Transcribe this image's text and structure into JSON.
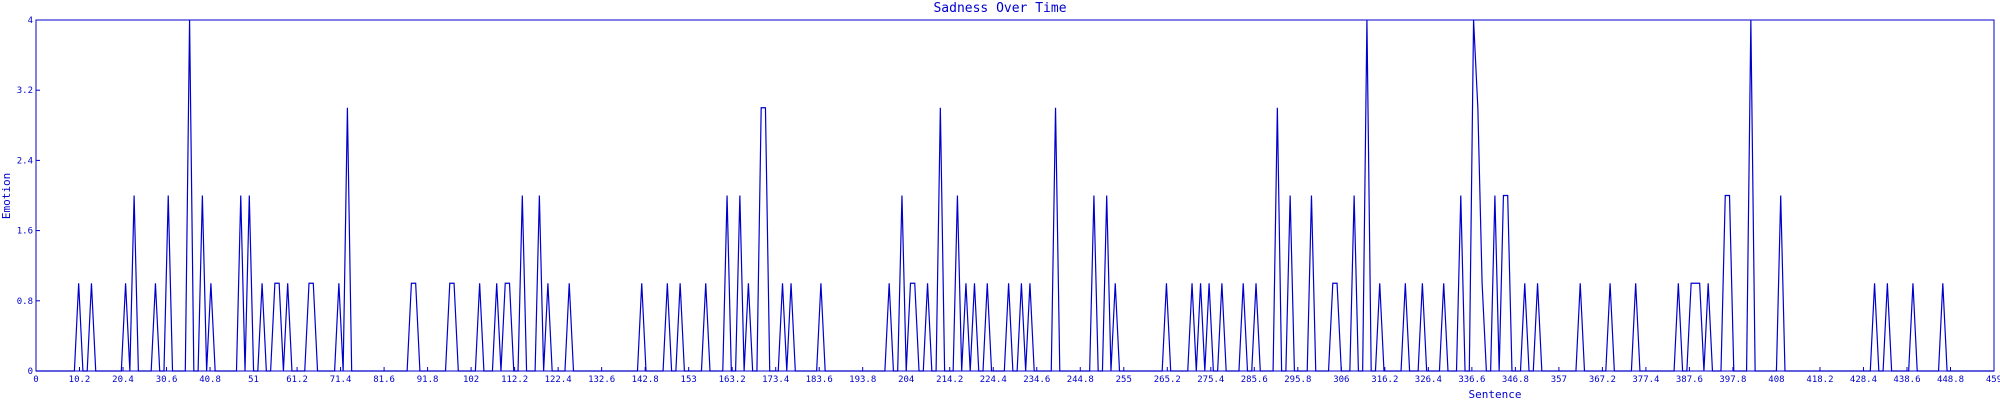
{
  "chart_data": {
    "type": "line",
    "title": "Sadness Over Time",
    "xlabel": "Sentence",
    "ylabel": "Emotion",
    "xlim": [
      0,
      459
    ],
    "ylim": [
      0,
      4
    ],
    "grid": false,
    "color": "#0000cc",
    "x_ticks": [
      "0",
      "10.2",
      "20.4",
      "30.6",
      "40.8",
      "51",
      "61.2",
      "71.4",
      "81.6",
      "91.8",
      "102",
      "112.2",
      "122.4",
      "132.6",
      "142.8",
      "153",
      "163.2",
      "173.4",
      "183.6",
      "193.8",
      "204",
      "214.2",
      "224.4",
      "234.6",
      "244.8",
      "255",
      "265.2",
      "275.4",
      "285.6",
      "295.8",
      "306",
      "316.2",
      "326.4",
      "336.6",
      "346.8",
      "357",
      "367.2",
      "377.4",
      "387.6",
      "397.8",
      "408",
      "418.2",
      "428.4",
      "438.6",
      "448.8",
      "459"
    ],
    "y_ticks": [
      "0",
      "0.8",
      "1.6",
      "2.4",
      "3.2",
      "4"
    ],
    "peaks": [
      [
        10,
        1
      ],
      [
        13,
        1
      ],
      [
        21,
        1
      ],
      [
        23,
        2
      ],
      [
        28,
        1
      ],
      [
        31,
        2
      ],
      [
        36,
        4
      ],
      [
        39,
        2
      ],
      [
        41,
        1
      ],
      [
        48,
        2
      ],
      [
        50,
        2
      ],
      [
        53,
        1
      ],
      [
        56,
        1
      ],
      [
        57,
        1
      ],
      [
        59,
        1
      ],
      [
        64,
        1
      ],
      [
        65,
        1
      ],
      [
        71,
        1
      ],
      [
        73,
        3
      ],
      [
        88,
        1
      ],
      [
        89,
        1
      ],
      [
        97,
        1
      ],
      [
        98,
        1
      ],
      [
        104,
        1
      ],
      [
        108,
        1
      ],
      [
        110,
        1
      ],
      [
        111,
        1
      ],
      [
        114,
        2
      ],
      [
        118,
        2
      ],
      [
        120,
        1
      ],
      [
        125,
        1
      ],
      [
        142,
        1
      ],
      [
        148,
        1
      ],
      [
        151,
        1
      ],
      [
        157,
        1
      ],
      [
        162,
        2
      ],
      [
        165,
        2
      ],
      [
        167,
        1
      ],
      [
        170,
        3
      ],
      [
        171,
        3
      ],
      [
        175,
        1
      ],
      [
        177,
        1
      ],
      [
        184,
        1
      ],
      [
        200,
        1
      ],
      [
        203,
        2
      ],
      [
        205,
        1
      ],
      [
        206,
        1
      ],
      [
        209,
        1
      ],
      [
        212,
        3
      ],
      [
        216,
        2
      ],
      [
        218,
        1
      ],
      [
        220,
        1
      ],
      [
        223,
        1
      ],
      [
        228,
        1
      ],
      [
        231,
        1
      ],
      [
        233,
        1
      ],
      [
        239,
        3
      ],
      [
        248,
        2
      ],
      [
        251,
        2
      ],
      [
        253,
        1
      ],
      [
        265,
        1
      ],
      [
        271,
        1
      ],
      [
        273,
        1
      ],
      [
        275,
        1
      ],
      [
        278,
        1
      ],
      [
        283,
        1
      ],
      [
        286,
        1
      ],
      [
        291,
        3
      ],
      [
        294,
        2
      ],
      [
        299,
        2
      ],
      [
        304,
        1
      ],
      [
        305,
        1
      ],
      [
        309,
        2
      ],
      [
        312,
        4
      ],
      [
        315,
        1
      ],
      [
        321,
        1
      ],
      [
        325,
        1
      ],
      [
        330,
        1
      ],
      [
        334,
        2
      ],
      [
        337,
        4
      ],
      [
        338,
        3
      ],
      [
        339,
        1
      ],
      [
        342,
        2
      ],
      [
        344,
        2
      ],
      [
        345,
        2
      ],
      [
        349,
        1
      ],
      [
        352,
        1
      ],
      [
        362,
        1
      ],
      [
        369,
        1
      ],
      [
        375,
        1
      ],
      [
        385,
        1
      ],
      [
        388,
        1
      ],
      [
        389,
        1
      ],
      [
        390,
        1
      ],
      [
        392,
        1
      ],
      [
        396,
        2
      ],
      [
        397,
        2
      ],
      [
        402,
        4
      ],
      [
        409,
        2
      ],
      [
        431,
        1
      ],
      [
        434,
        1
      ],
      [
        440,
        1
      ],
      [
        447,
        1
      ]
    ]
  }
}
